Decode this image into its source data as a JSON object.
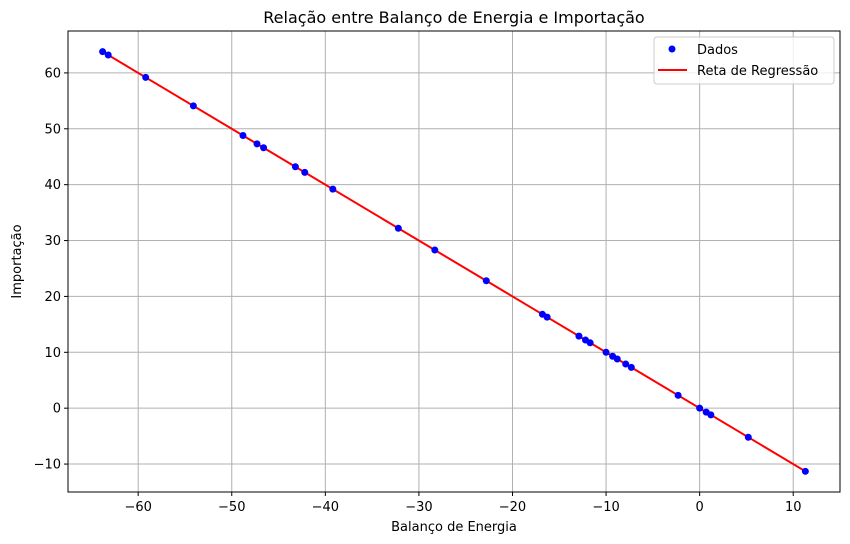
{
  "chart_data": {
    "type": "scatter",
    "title": "Relação entre Balanço de Energia e Importação",
    "xlabel": "Balanço de Energia",
    "ylabel": "Importação",
    "xlim": [
      -67.5,
      15
    ],
    "ylim": [
      -15,
      67.5
    ],
    "xticks": [
      -60,
      -50,
      -40,
      -30,
      -20,
      -10,
      0,
      10
    ],
    "yticks": [
      -10,
      0,
      10,
      20,
      30,
      40,
      50,
      60
    ],
    "xtick_labels": [
      "−60",
      "−50",
      "−40",
      "−30",
      "−20",
      "−10",
      "0",
      "10"
    ],
    "ytick_labels": [
      "−10",
      "0",
      "10",
      "20",
      "30",
      "40",
      "50",
      "60"
    ],
    "grid": true,
    "legend_position": "top-right",
    "series": [
      {
        "name": "Dados",
        "kind": "scatter",
        "color": "#0000ff",
        "x": [
          -63.8,
          -63.2,
          -59.2,
          -54.1,
          -48.8,
          -47.3,
          -46.6,
          -43.2,
          -42.2,
          -39.2,
          -32.2,
          -28.3,
          -22.8,
          -16.8,
          -16.3,
          -12.9,
          -12.2,
          -11.7,
          -10.0,
          -9.3,
          -8.8,
          -7.9,
          -7.3,
          -2.3,
          0.0,
          0.7,
          1.2,
          5.2,
          11.3
        ],
        "y": [
          63.8,
          63.2,
          59.2,
          54.1,
          48.8,
          47.3,
          46.6,
          43.2,
          42.2,
          39.2,
          32.2,
          28.3,
          22.8,
          16.8,
          16.3,
          12.9,
          12.2,
          11.7,
          10.0,
          9.3,
          8.8,
          7.9,
          7.3,
          2.3,
          0.0,
          -0.7,
          -1.2,
          -5.2,
          -11.3
        ]
      },
      {
        "name": "Reta de Regressão",
        "kind": "line",
        "color": "#ff0000",
        "x": [
          -63.8,
          11.3
        ],
        "y": [
          63.8,
          -11.3
        ]
      }
    ]
  }
}
